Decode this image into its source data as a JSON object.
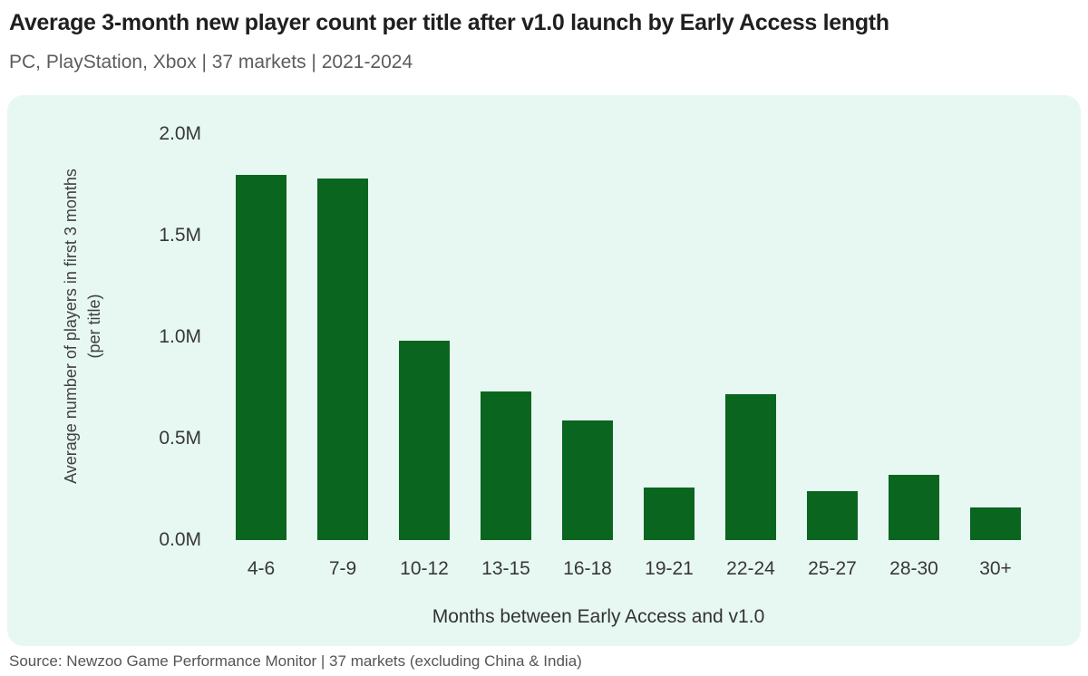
{
  "header": {
    "title": "Average 3-month new player count per title after v1.0 launch by Early Access length",
    "subtitle": "PC, PlayStation, Xbox | 37 markets | 2021-2024"
  },
  "footer": {
    "source": "Source: Newzoo Game Performance Monitor | 37 markets (excluding China & India)"
  },
  "colors": {
    "bar": "#0a661f",
    "panel_bg": "#e7f8f3",
    "title_text": "#1f1f1f",
    "subtitle_text": "#5c5c5c",
    "axis_text": "#383838",
    "source_text": "#555555"
  },
  "chart_data": {
    "type": "bar",
    "title": "Average 3-month new player count per title after v1.0 launch by Early Access length",
    "subtitle": "PC, PlayStation, Xbox | 37 markets | 2021-2024",
    "categories": [
      "4-6",
      "7-9",
      "10-12",
      "13-15",
      "16-18",
      "19-21",
      "22-24",
      "25-27",
      "28-30",
      "30+"
    ],
    "values": [
      1.8,
      1.78,
      0.98,
      0.73,
      0.59,
      0.26,
      0.72,
      0.24,
      0.32,
      0.16
    ],
    "value_unit": "M",
    "xlabel": "Months between Early Access and v1.0",
    "ylabel": "Average number of players in first 3 months",
    "ylabel_line2": "(per title)",
    "ylim": [
      0,
      2.0
    ],
    "ytick_values": [
      0,
      0.5,
      1.0,
      1.5,
      2.0
    ],
    "ytick_labels": [
      "0.0M",
      "0.5M",
      "1.0M",
      "1.5M",
      "2.0M"
    ],
    "grid": false,
    "legend_position": "none",
    "bar_color": "#0a661f",
    "background": "#e7f8f3"
  }
}
